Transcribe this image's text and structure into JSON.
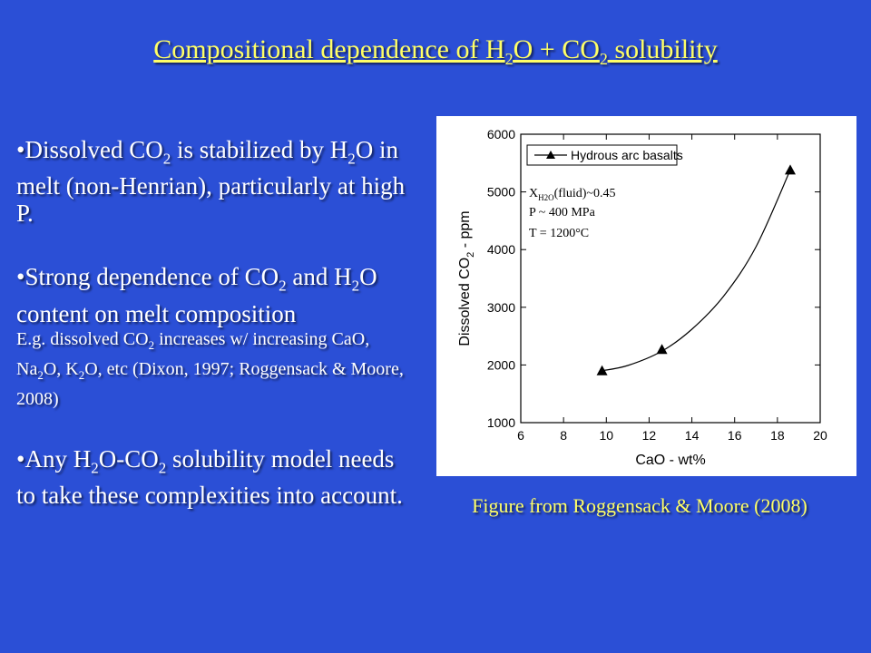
{
  "slide": {
    "title": {
      "pre": "Compositional dependence of H",
      "sub1": "2",
      "mid": "O + CO",
      "sub2": "2",
      "post": " solubility"
    },
    "bullets": [
      {
        "t1": "•Dissolved CO",
        "s1": "2",
        "t2": " is stabilized by H",
        "s2": "2",
        "t3": "O in melt (non-Henrian), particularly at high P."
      },
      {
        "t1": "•Strong dependence of CO",
        "s1": "2",
        "t2": " and H",
        "s2": "2",
        "t3": "O content on melt composition"
      },
      {
        "t1": "•Any H",
        "s1": "2",
        "t2": "O-CO",
        "s2": "2",
        "t3": " solubility model needs to take these complexities into account."
      }
    ],
    "sub_bullet": {
      "t1": "E.g. dissolved CO",
      "s1": "2",
      "t2": " increases w/ increasing CaO, Na",
      "s2": "2",
      "t3": "O, K",
      "s3": "2",
      "t4": "O, etc (Dixon, 1997; Roggensack & Moore, 2008)"
    },
    "caption": "Figure from Roggensack & Moore (2008)",
    "colors": {
      "background": "#2b4fd6",
      "title": "#ffff66",
      "text": "#ffffff",
      "caption": "#ffff66"
    }
  },
  "chart_data": {
    "type": "scatter",
    "xlabel": "CaO - wt%",
    "ylabel": {
      "pre": "Dissolved CO",
      "sub": "2",
      "post": " - ppm"
    },
    "xlim": [
      6,
      20
    ],
    "ylim": [
      1000,
      6000
    ],
    "xticks": [
      6,
      8,
      10,
      12,
      14,
      16,
      18,
      20
    ],
    "yticks": [
      1000,
      2000,
      3000,
      4000,
      5000,
      6000
    ],
    "series": [
      {
        "name": "Hydrous arc basalts",
        "marker": "triangle",
        "points": [
          {
            "x": 9.8,
            "y": 1900
          },
          {
            "x": 12.6,
            "y": 2270
          },
          {
            "x": 18.6,
            "y": 5380
          }
        ]
      }
    ],
    "fit_curve": [
      {
        "x": 9.8,
        "y": 1900
      },
      {
        "x": 11.0,
        "y": 1990
      },
      {
        "x": 12.6,
        "y": 2240
      },
      {
        "x": 14.0,
        "y": 2620
      },
      {
        "x": 15.5,
        "y": 3200
      },
      {
        "x": 17.0,
        "y": 4050
      },
      {
        "x": 18.6,
        "y": 5380
      }
    ],
    "annotation": {
      "x_label": "X",
      "x_sub": "H2O",
      "x_rest": "(fluid)~0.45",
      "pressure": "P ~ 400 MPa",
      "temperature": "T = 1200°C"
    },
    "legend_position": "top-left",
    "grid": false
  }
}
